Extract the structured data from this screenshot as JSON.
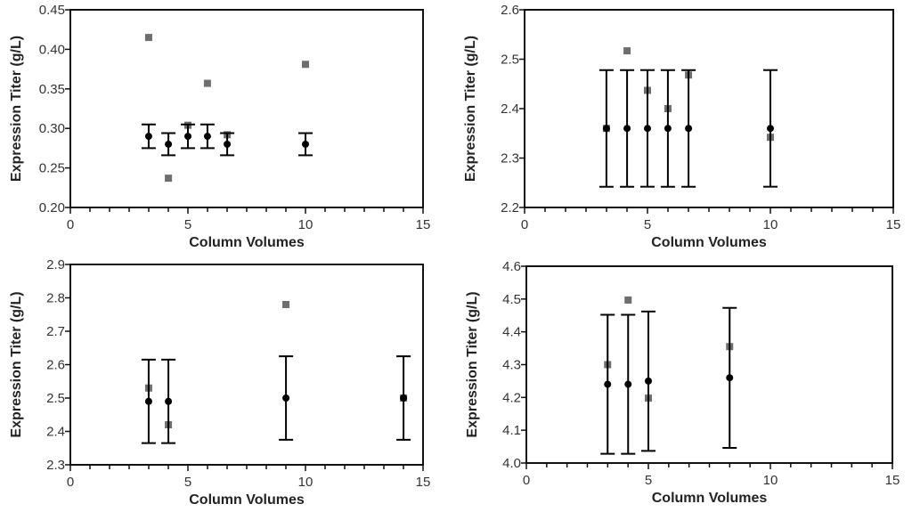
{
  "colors": {
    "mean_marker": "#000000",
    "individual_marker": "#6e6e6e",
    "axis": "#111111"
  },
  "chart_data": [
    {
      "type": "scatter",
      "xlabel": "Column Volumes",
      "ylabel": "Expression Titer (g/L)",
      "xlim": [
        0,
        15
      ],
      "ylim": [
        0.2,
        0.45
      ],
      "xticks": [
        "0",
        "5",
        "10",
        "15"
      ],
      "yticks": [
        "0.20",
        "0.25",
        "0.30",
        "0.35",
        "0.40",
        "0.45"
      ],
      "grid": false,
      "x": [
        3.33,
        4.17,
        5.0,
        5.83,
        6.67,
        10.0
      ],
      "series": [
        {
          "marker": "circle",
          "values": [
            0.29,
            0.28,
            0.29,
            0.29,
            0.28,
            0.28
          ],
          "error_low": [
            0.275,
            0.266,
            0.275,
            0.275,
            0.266,
            0.266
          ],
          "error_high": [
            0.305,
            0.294,
            0.305,
            0.305,
            0.294,
            0.294
          ]
        },
        {
          "marker": "square",
          "values": [
            0.415,
            0.237,
            0.304,
            0.357,
            0.292,
            0.381
          ]
        }
      ]
    },
    {
      "type": "scatter",
      "xlabel": "Column Volumes",
      "ylabel": "Expression Titer (g/L)",
      "xlim": [
        0,
        15
      ],
      "ylim": [
        2.2,
        2.6
      ],
      "xticks": [
        "0",
        "5",
        "10",
        "15"
      ],
      "yticks": [
        "2.2",
        "2.3",
        "2.4",
        "2.5",
        "2.6"
      ],
      "grid": false,
      "x": [
        3.33,
        4.17,
        5.0,
        5.83,
        6.67,
        10.0
      ],
      "series": [
        {
          "marker": "circle",
          "values": [
            2.36,
            2.36,
            2.36,
            2.36,
            2.36,
            2.36
          ],
          "error_low": [
            2.242,
            2.242,
            2.242,
            2.242,
            2.242,
            2.242
          ],
          "error_high": [
            2.478,
            2.478,
            2.478,
            2.478,
            2.478,
            2.478
          ]
        },
        {
          "marker": "square",
          "values": [
            2.36,
            2.517,
            2.437,
            2.4,
            2.468,
            2.342
          ]
        }
      ]
    },
    {
      "type": "scatter",
      "xlabel": "Column Volumes",
      "ylabel": "Expression Titer (g/L)",
      "xlim": [
        0,
        15
      ],
      "ylim": [
        2.3,
        2.9
      ],
      "xticks": [
        "0",
        "5",
        "10",
        "15"
      ],
      "yticks": [
        "2.3",
        "2.4",
        "2.5",
        "2.6",
        "2.7",
        "2.8",
        "2.9"
      ],
      "grid": false,
      "x": [
        3.33,
        4.17,
        9.17,
        14.17
      ],
      "series": [
        {
          "marker": "circle",
          "values": [
            2.49,
            2.49,
            2.5,
            2.5
          ],
          "error_low": [
            2.365,
            2.365,
            2.375,
            2.375
          ],
          "error_high": [
            2.615,
            2.615,
            2.625,
            2.625
          ]
        },
        {
          "marker": "square",
          "values": [
            2.53,
            2.42,
            2.78,
            2.5
          ]
        }
      ]
    },
    {
      "type": "scatter",
      "xlabel": "Column Volumes",
      "ylabel": "Expression Titer (g/L)",
      "xlim": [
        0,
        15
      ],
      "ylim": [
        4.0,
        4.6
      ],
      "xticks": [
        "0",
        "5",
        "10",
        "15"
      ],
      "yticks": [
        "4.0",
        "4.1",
        "4.2",
        "4.3",
        "4.4",
        "4.5",
        "4.6"
      ],
      "grid": false,
      "x": [
        3.33,
        4.17,
        5.0,
        8.33
      ],
      "series": [
        {
          "marker": "circle",
          "values": [
            4.24,
            4.24,
            4.25,
            4.26
          ],
          "error_low": [
            4.028,
            4.028,
            4.037,
            4.046
          ],
          "error_high": [
            4.452,
            4.452,
            4.462,
            4.473
          ]
        },
        {
          "marker": "square",
          "values": [
            4.3,
            4.497,
            4.198,
            4.355
          ]
        }
      ]
    }
  ]
}
